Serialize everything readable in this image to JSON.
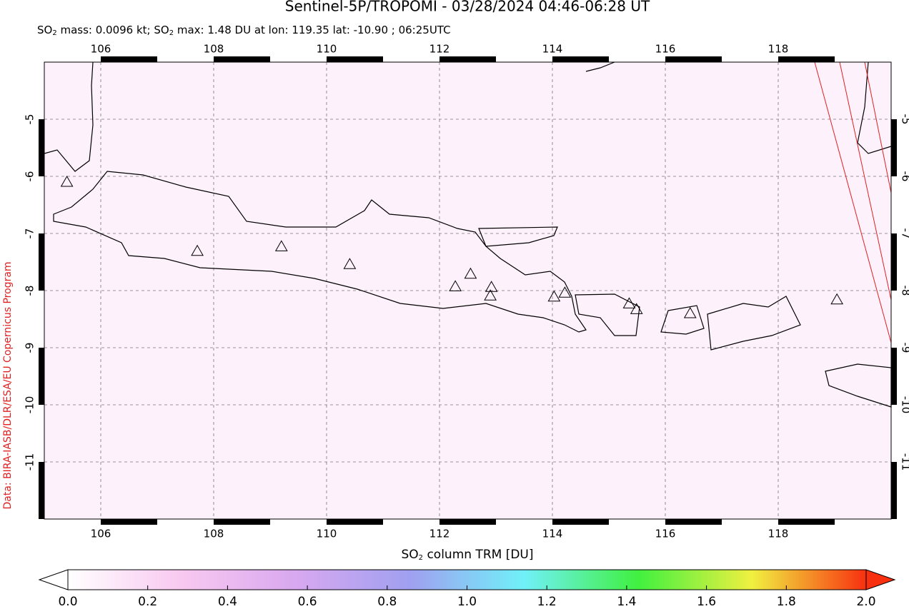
{
  "chart_data": {
    "type": "map",
    "title": "Sentinel-5P/TROPOMI - 03/28/2024 04:46-06:28 UT",
    "subtitle_parts": [
      "SO",
      "2",
      " mass: 0.0096 kt; SO",
      "2",
      " max: 1.48 DU at lon: 119.35 lat: -10.90 ; 06:25UTC"
    ],
    "credit": "Data: BIRA-IASB/DLR/ESA/EU Copernicus Program",
    "xlim": [
      105,
      120
    ],
    "ylim": [
      -12,
      -4
    ],
    "xticks": [
      106,
      108,
      110,
      112,
      114,
      116,
      118
    ],
    "yticks": [
      -5,
      -6,
      -7,
      -8,
      -9,
      -10,
      -11
    ],
    "grid": true,
    "volcanoes": {
      "lon": [
        105.4,
        107.71,
        109.2,
        110.41,
        112.28,
        112.55,
        112.92,
        112.9,
        114.03,
        114.22,
        115.36,
        115.49,
        116.44,
        119.04
      ],
      "lat": [
        -6.1,
        -7.31,
        -7.23,
        -7.54,
        -7.93,
        -7.71,
        -7.94,
        -8.09,
        -8.11,
        -8.04,
        -8.23,
        -8.33,
        -8.4,
        -8.16
      ]
    },
    "colorbar": {
      "label_parts": [
        "SO",
        "2",
        " column TRM [DU]"
      ],
      "lim": [
        0,
        2
      ],
      "ticks": [
        {
          "value": 0,
          "label": "0.0"
        },
        {
          "value": 0.2,
          "label": "0.2"
        },
        {
          "value": 0.4,
          "label": "0.4"
        },
        {
          "value": 0.6,
          "label": "0.6"
        },
        {
          "value": 0.8,
          "label": "0.8"
        },
        {
          "value": 1,
          "label": "1.0"
        },
        {
          "value": 1.2,
          "label": "1.2"
        },
        {
          "value": 1.4,
          "label": "1.4"
        },
        {
          "value": 1.6,
          "label": "1.6"
        },
        {
          "value": 1.8,
          "label": "1.8"
        },
        {
          "value": 2,
          "label": "2.0"
        }
      ],
      "colors": [
        "#ffffff",
        "#f8c8f0",
        "#d8a8f0",
        "#a0a0f0",
        "#70f0f8",
        "#40f040",
        "#f0f040",
        "#f83010"
      ]
    }
  }
}
